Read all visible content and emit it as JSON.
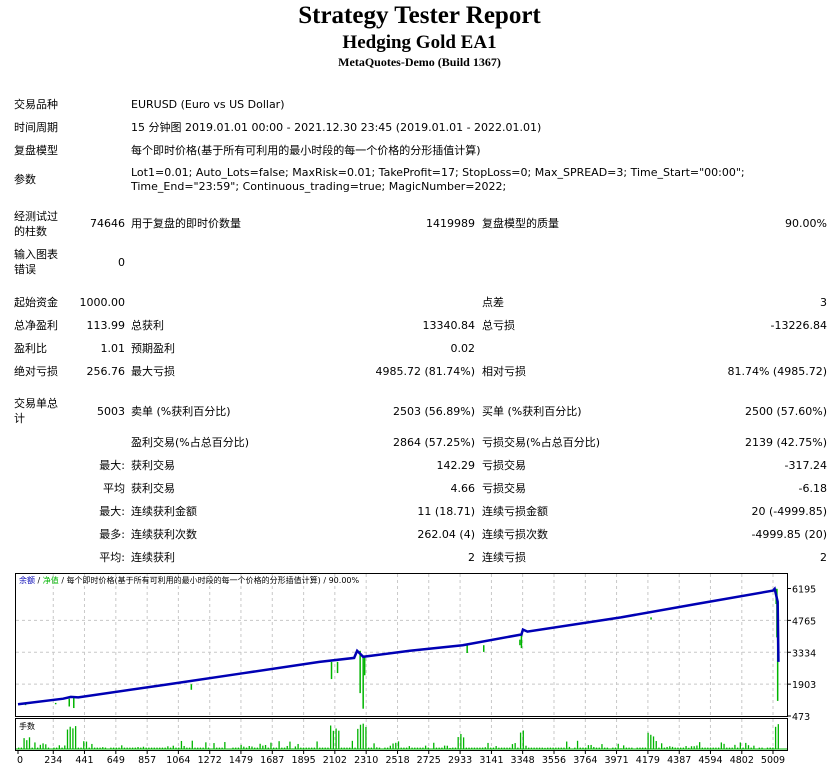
{
  "header": {
    "title": "Strategy Tester Report",
    "ea_name": "Hedging Gold EA1",
    "server": "MetaQuotes-Demo (Build 1367)"
  },
  "settings": {
    "symbol_label": "交易品种",
    "symbol": "EURUSD (Euro vs US Dollar)",
    "period_label": "时间周期",
    "period": "15 分钟图 2019.01.01 00:00 - 2021.12.30 23:45 (2019.01.01 - 2022.01.01)",
    "model_label": "复盘模型",
    "model": "每个即时价格(基于所有可利用的最小时段的每一个价格的分形插值计算)",
    "params_label": "参数",
    "params_line1": "Lot1=0.01; Auto_Lots=false; MaxRisk=0.01; TakeProfit=17; StopLoss=0; Max_SPREAD=3; Time_Start=\"00:00\";",
    "params_line2": "Time_End=\"23:59\"; Continuous_trading=true; MagicNumber=2022;",
    "bars_label1": "经测试过",
    "bars_label2": "的柱数",
    "bars": "74646",
    "ticks_label": "用于复盘的即时价数量",
    "ticks": "1419989",
    "quality_label": "复盘模型的质量",
    "quality": "90.00%",
    "errors_label1": "输入图表",
    "errors_label2": "错误",
    "errors": "0"
  },
  "stats": {
    "deposit_label": "起始资金",
    "deposit": "1000.00",
    "spread_label": "点差",
    "spread": "3",
    "net_label": "总净盈利",
    "net": "113.99",
    "gross_profit_label": "总获利",
    "gross_profit": "13340.84",
    "gross_loss_label": "总亏损",
    "gross_loss": "-13226.84",
    "pf_label": "盈利比",
    "pf": "1.01",
    "expected_label": "预期盈利",
    "expected": "0.02",
    "abs_dd_label": "绝对亏损",
    "abs_dd": "256.76",
    "max_dd_label": "最大亏损",
    "max_dd": "4985.72 (81.74%)",
    "rel_dd_label": "相对亏损",
    "rel_dd": "81.74% (4985.72)",
    "trades_label1": "交易单总",
    "trades_label2": "计",
    "trades": "5003",
    "short_label": "卖单 (%获利百分比)",
    "short": "2503 (56.89%)",
    "long_label": "买单 (%获利百分比)",
    "long": "2500 (57.60%)",
    "profit_trades_label": "盈利交易(%占总百分比)",
    "profit_trades": "2864 (57.25%)",
    "loss_trades_label": "亏损交易(%占总百分比)",
    "loss_trades": "2139 (42.75%)",
    "rows": [
      {
        "prefix": "最大:",
        "l1": "获利交易",
        "v1": "142.29",
        "l2": "亏损交易",
        "v2": "-317.24"
      },
      {
        "prefix": "平均",
        "l1": "获利交易",
        "v1": "4.66",
        "l2": "亏损交易",
        "v2": "-6.18"
      },
      {
        "prefix": "最大:",
        "l1": "连续获利金额",
        "v1": "11 (18.71)",
        "l2": "连续亏损金额",
        "v2": "20 (-4999.85)"
      },
      {
        "prefix": "最多:",
        "l1": "连续获利次数",
        "v1": "262.04 (4)",
        "l2": "连续亏损次数",
        "v2": "-4999.85 (20)"
      },
      {
        "prefix": "平均:",
        "l1": "连续获利",
        "v1": "2",
        "l2": "连续亏损",
        "v2": "2"
      }
    ]
  },
  "chart_data": {
    "type": "line",
    "legend": {
      "balance": "余额",
      "sep1": " / ",
      "equity": "净值",
      "sep2": " / ",
      "model": "每个即时价格(基于所有可利用的最小时段的每一个价格的分形插值计算)",
      "sep3": " / ",
      "quality": "90.00%"
    },
    "volume_label": "手数",
    "colors": {
      "balance": "#0000b4",
      "equity": "#00b400",
      "volume": "#00b400"
    },
    "xlim": [
      0,
      5050
    ],
    "ylim": [
      473,
      6195
    ],
    "x_ticks": [
      "0",
      "234",
      "441",
      "649",
      "857",
      "1064",
      "1272",
      "1479",
      "1687",
      "1895",
      "2102",
      "2310",
      "2518",
      "2725",
      "2933",
      "3141",
      "3348",
      "3556",
      "3764",
      "3971",
      "4179",
      "4387",
      "4594",
      "4802",
      "5009"
    ],
    "y_ticks": [
      "6195",
      "4765",
      "3334",
      "1903",
      "473"
    ],
    "balance": [
      [
        0,
        1000
      ],
      [
        300,
        1250
      ],
      [
        350,
        1330
      ],
      [
        400,
        1310
      ],
      [
        1000,
        1900
      ],
      [
        1500,
        2400
      ],
      [
        2000,
        2900
      ],
      [
        2230,
        3080
      ],
      [
        2250,
        3400
      ],
      [
        2290,
        3130
      ],
      [
        2600,
        3400
      ],
      [
        2950,
        3650
      ],
      [
        3340,
        4130
      ],
      [
        3350,
        4350
      ],
      [
        3380,
        4260
      ],
      [
        4000,
        4900
      ],
      [
        4500,
        5500
      ],
      [
        5009,
        6100
      ],
      [
        5020,
        6180
      ],
      [
        5040,
        5600
      ],
      [
        5045,
        2900
      ]
    ],
    "equity_dips": [
      [
        50,
        960
      ],
      [
        250,
        1060
      ],
      [
        340,
        900
      ],
      [
        370,
        830
      ],
      [
        1150,
        1650
      ],
      [
        2080,
        2130
      ],
      [
        2120,
        2400
      ],
      [
        2270,
        1500
      ],
      [
        2290,
        800
      ],
      [
        2300,
        2300
      ],
      [
        2980,
        3300
      ],
      [
        3090,
        3350
      ],
      [
        3330,
        3900
      ],
      [
        3340,
        3520
      ],
      [
        4200,
        4800
      ],
      [
        5030,
        5500
      ],
      [
        5035,
        4000
      ],
      [
        5040,
        1150
      ]
    ],
    "volume_spikes": [
      [
        60,
        0.5
      ],
      [
        340,
        0.8
      ],
      [
        370,
        0.9
      ],
      [
        2080,
        0.85
      ],
      [
        2110,
        0.8
      ],
      [
        2270,
        0.95
      ],
      [
        2290,
        1
      ],
      [
        2940,
        0.6
      ],
      [
        3340,
        0.8
      ],
      [
        4200,
        0.6
      ],
      [
        5030,
        1
      ],
      [
        5040,
        0.9
      ]
    ]
  }
}
